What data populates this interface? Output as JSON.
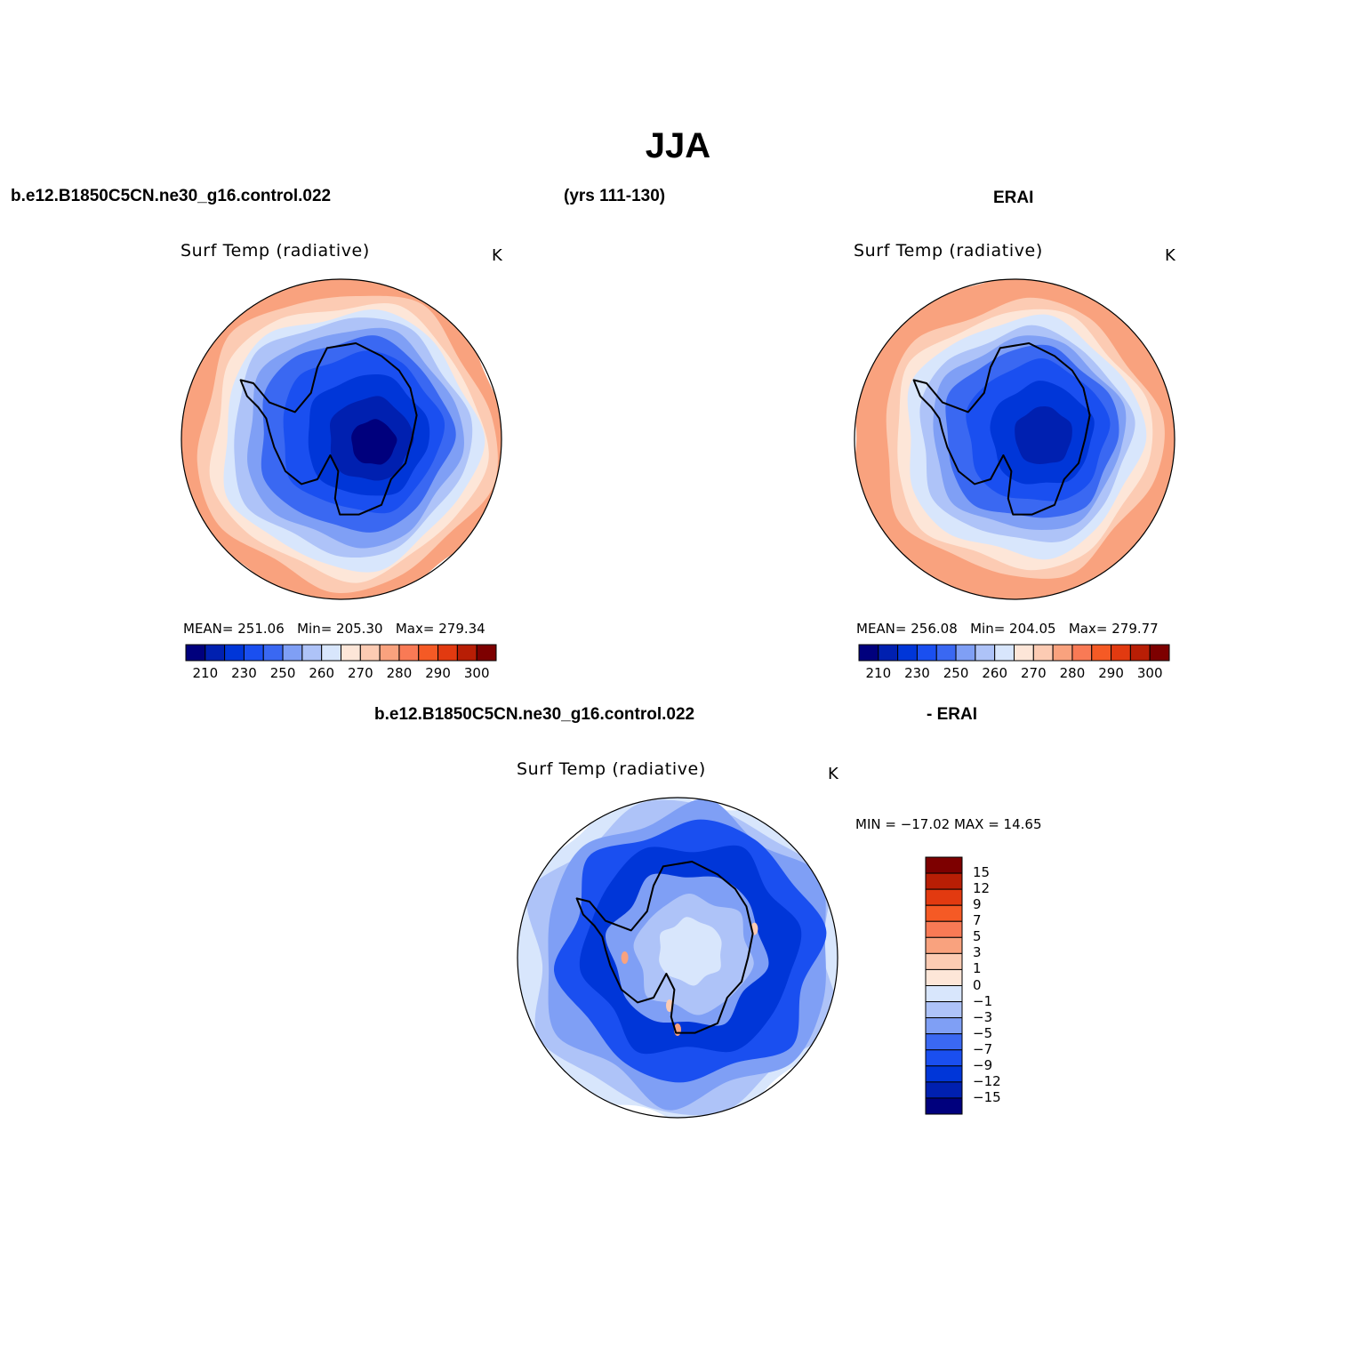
{
  "figure": {
    "title": "JJA",
    "model_name": "b.e12.B1850C5CN.ne30_g16.control.022",
    "years": "(yrs 111-130)",
    "obs_name": "ERAI",
    "diff_model_name": "b.e12.B1850C5CN.ne30_g16.control.022",
    "diff_obs_name": "- ERAI"
  },
  "panels": [
    {
      "id": "model",
      "title": "Surf Temp (radiative)",
      "units": "K",
      "mean_label": "MEAN=",
      "mean": "251.06",
      "min_label": "Min=",
      "min": "205.30",
      "max_label": "Max=",
      "max": "279.34"
    },
    {
      "id": "obs",
      "title": "Surf Temp (radiative)",
      "units": "K",
      "mean_label": "MEAN=",
      "mean": "256.08",
      "min_label": "Min=",
      "min": "204.05",
      "max_label": "Max=",
      "max": "279.77"
    },
    {
      "id": "diff",
      "title": "Surf Temp (radiative)",
      "units": "K",
      "minmax_text": "MIN = −17.02  MAX =   14.65"
    }
  ],
  "chart_data": [
    {
      "type": "heatmap",
      "projection": "south-polar stereographic",
      "title": "Surf Temp (radiative)",
      "units": "K",
      "stats": {
        "mean": 251.06,
        "min": 205.3,
        "max": 279.34
      },
      "colorbar": {
        "orientation": "horizontal",
        "levels": [
          210,
          220,
          230,
          240,
          250,
          255,
          260,
          265,
          270,
          275,
          280,
          285,
          290,
          295,
          300
        ],
        "tick_labels": [
          "210",
          "230",
          "250",
          "260",
          "270",
          "280",
          "290",
          "300"
        ],
        "colors": [
          "#00007d",
          "#0020b0",
          "#0036d8",
          "#1a4ff0",
          "#3a68f2",
          "#7f9ff5",
          "#aec3f8",
          "#d8e6fc",
          "#fde6d8",
          "#fccbb3",
          "#f9a27e",
          "#f97a55",
          "#f55a25",
          "#e23a10",
          "#b81e05",
          "#7d0000"
        ]
      }
    },
    {
      "type": "heatmap",
      "projection": "south-polar stereographic",
      "title": "Surf Temp (radiative)",
      "units": "K",
      "stats": {
        "mean": 256.08,
        "min": 204.05,
        "max": 279.77
      },
      "colorbar": {
        "orientation": "horizontal",
        "levels": [
          210,
          220,
          230,
          240,
          250,
          255,
          260,
          265,
          270,
          275,
          280,
          285,
          290,
          295,
          300
        ],
        "tick_labels": [
          "210",
          "230",
          "250",
          "260",
          "270",
          "280",
          "290",
          "300"
        ],
        "colors": [
          "#00007d",
          "#0020b0",
          "#0036d8",
          "#1a4ff0",
          "#3a68f2",
          "#7f9ff5",
          "#aec3f8",
          "#d8e6fc",
          "#fde6d8",
          "#fccbb3",
          "#f9a27e",
          "#f97a55",
          "#f55a25",
          "#e23a10",
          "#b81e05",
          "#7d0000"
        ]
      }
    },
    {
      "type": "heatmap",
      "projection": "south-polar stereographic",
      "title": "Surf Temp (radiative)",
      "units": "K",
      "stats": {
        "min": -17.02,
        "max": 14.65
      },
      "colorbar": {
        "orientation": "vertical",
        "levels": [
          15,
          12,
          9,
          7,
          5,
          3,
          1,
          0,
          -1,
          -3,
          -5,
          -7,
          -9,
          -12,
          -15
        ],
        "tick_labels": [
          "15",
          "12",
          "9",
          "7",
          "5",
          "3",
          "1",
          "0",
          "−1",
          "−3",
          "−5",
          "−7",
          "−9",
          "−12",
          "−15"
        ],
        "colors": [
          "#7d0000",
          "#b81e05",
          "#e23a10",
          "#f55a25",
          "#f97a55",
          "#f9a27e",
          "#fccbb3",
          "#fde6d8",
          "#d8e6fc",
          "#aec3f8",
          "#7f9ff5",
          "#3a68f2",
          "#1a4ff0",
          "#0036d8",
          "#0020b0",
          "#00007d"
        ]
      }
    }
  ]
}
